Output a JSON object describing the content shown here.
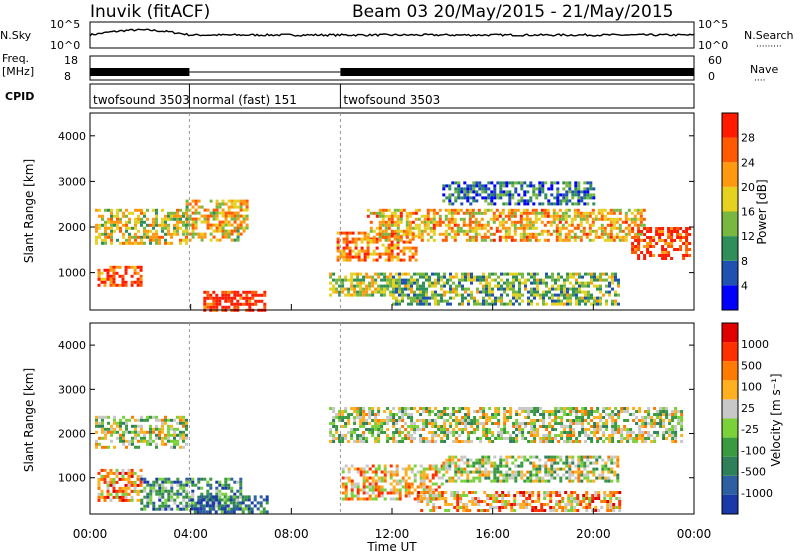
{
  "header": {
    "station": "Inuvik (fitACF)",
    "beam_info": "Beam 03  20/May/2015 - 21/May/2015"
  },
  "nsky_panel": {
    "left_label": "N.Sky",
    "right_label": "N.Search",
    "right_legend": "·········",
    "left_ticks": [
      "10^5",
      "10^0"
    ],
    "right_ticks": [
      "10^5",
      "10^0"
    ]
  },
  "freq_panel": {
    "left_label": "Freq.",
    "left_unit": "[MHz]",
    "right_label": "Nave",
    "right_legend": "····",
    "left_ticks": [
      "18",
      "8"
    ],
    "right_ticks": [
      "60",
      "0"
    ]
  },
  "cpid_panel": {
    "label": "CPID",
    "segments": [
      {
        "start_hour": 0.0,
        "end_hour": 3.95,
        "text": "twofsound 3503"
      },
      {
        "start_hour": 3.95,
        "end_hour": 9.95,
        "text": "normal (fast) 151"
      },
      {
        "start_hour": 9.95,
        "end_hour": 24.0,
        "text": "twofsound 3503"
      }
    ]
  },
  "time_axis": {
    "label": "Time UT",
    "tick_labels": [
      "00:00",
      "04:00",
      "08:00",
      "12:00",
      "16:00",
      "20:00",
      "00:00"
    ]
  },
  "chart_data": [
    {
      "type": "heatmap",
      "panel": "power",
      "ylabel": "Slant Range [km]",
      "x_range_hours": [
        0,
        24
      ],
      "ylim": [
        180,
        4500
      ],
      "y_ticks": [
        1000,
        2000,
        3000,
        4000
      ],
      "colorbar": {
        "label": "Power [dB]",
        "tick_labels": [
          "4",
          "8",
          "12",
          "16",
          "20",
          "24",
          "28"
        ],
        "colors": [
          "#0000ff",
          "#2050b0",
          "#2f8f5a",
          "#78b840",
          "#e6d020",
          "#ff9a10",
          "#ff5a00",
          "#ff1a00"
        ]
      },
      "echo_bands": [
        {
          "t0": 0.3,
          "t1": 2.0,
          "r0": 700,
          "r1": 1150,
          "v": 0.85
        },
        {
          "t0": 0.2,
          "t1": 3.8,
          "r0": 1650,
          "r1": 2400,
          "v": 0.55
        },
        {
          "t0": 4.5,
          "t1": 7.0,
          "r0": 200,
          "r1": 600,
          "v": 0.95
        },
        {
          "t0": 3.8,
          "t1": 6.3,
          "r0": 1700,
          "r1": 2600,
          "v": 0.6
        },
        {
          "t0": 9.8,
          "t1": 13.0,
          "r0": 1300,
          "r1": 1900,
          "v": 0.75
        },
        {
          "t0": 9.5,
          "t1": 12.0,
          "r0": 500,
          "r1": 1000,
          "v": 0.5
        },
        {
          "t0": 11.0,
          "t1": 22.0,
          "r0": 1700,
          "r1": 2400,
          "v": 0.65
        },
        {
          "t0": 12.0,
          "t1": 21.0,
          "r0": 300,
          "r1": 1000,
          "v": 0.4
        },
        {
          "t0": 21.5,
          "t1": 23.8,
          "r0": 1300,
          "r1": 2000,
          "v": 0.9
        },
        {
          "t0": 14.0,
          "t1": 20.0,
          "r0": 2500,
          "r1": 3000,
          "v": 0.25
        }
      ]
    },
    {
      "type": "heatmap",
      "panel": "velocity",
      "ylabel": "Slant Range [km]",
      "x_range_hours": [
        0,
        24
      ],
      "ylim": [
        180,
        4500
      ],
      "y_ticks": [
        1000,
        2000,
        3000,
        4000
      ],
      "colorbar": {
        "label": "Velocity [m s⁻¹]",
        "tick_labels": [
          "1000",
          "500",
          "100",
          "25",
          "-25",
          "-100",
          "-500",
          "-1000"
        ],
        "colors": [
          "#1a3aa8",
          "#2e5fa0",
          "#2f7f5a",
          "#3a9a40",
          "#7ad13a",
          "#c8c8c8",
          "#ffb020",
          "#ff7a00",
          "#ff3000",
          "#e00000"
        ]
      },
      "echo_bands": [
        {
          "t0": 0.2,
          "t1": 3.8,
          "r0": 1700,
          "r1": 2400,
          "v": 0.5
        },
        {
          "t0": 0.3,
          "t1": 2.0,
          "r0": 500,
          "r1": 1200,
          "v": 0.7
        },
        {
          "t0": 2.0,
          "t1": 6.0,
          "r0": 300,
          "r1": 1000,
          "v": 0.3
        },
        {
          "t0": 4.0,
          "t1": 7.0,
          "r0": 200,
          "r1": 600,
          "v": 0.2
        },
        {
          "t0": 9.5,
          "t1": 23.5,
          "r0": 1800,
          "r1": 2600,
          "v": 0.5
        },
        {
          "t0": 10.0,
          "t1": 14.0,
          "r0": 500,
          "r1": 1300,
          "v": 0.65
        },
        {
          "t0": 13.0,
          "t1": 21.0,
          "r0": 250,
          "r1": 700,
          "v": 0.68
        },
        {
          "t0": 14.0,
          "t1": 21.0,
          "r0": 900,
          "r1": 1500,
          "v": 0.5
        }
      ]
    }
  ]
}
